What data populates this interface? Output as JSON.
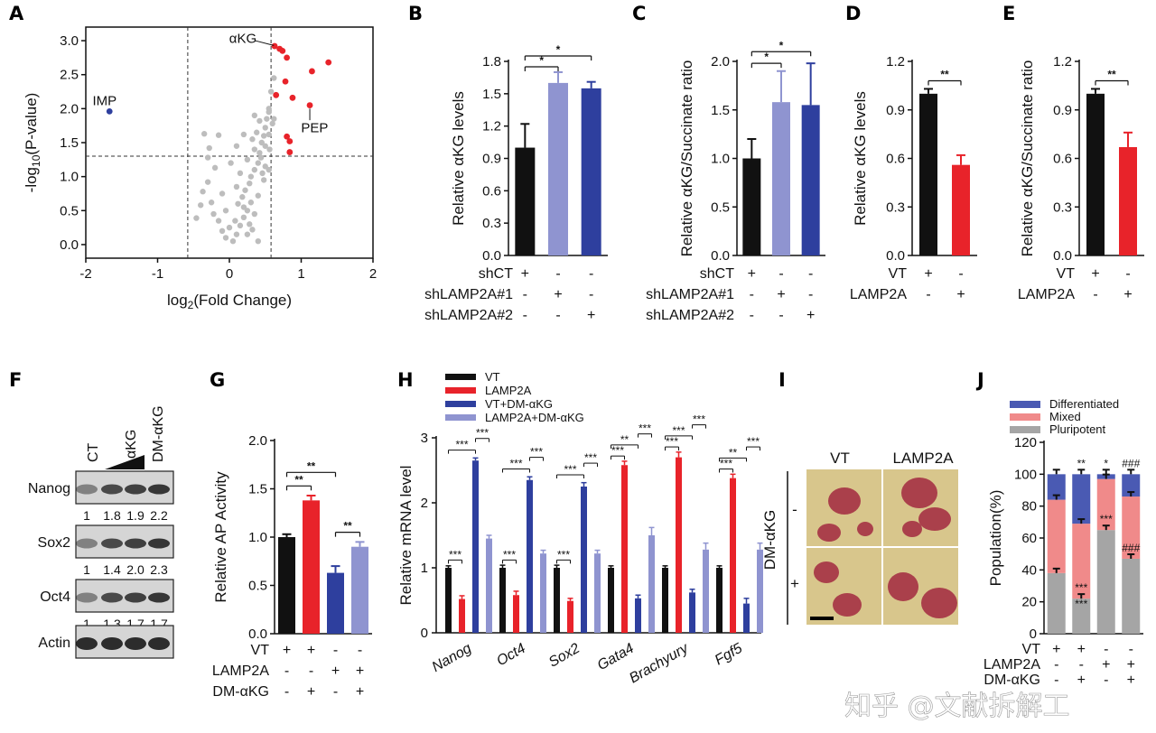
{
  "panel_labels": [
    "A",
    "B",
    "C",
    "D",
    "E",
    "F",
    "G",
    "H",
    "I",
    "J"
  ],
  "watermark": "知乎 @文献拆解工",
  "colors": {
    "black": "#111111",
    "red": "#e8232a",
    "blue": "#2e3f9e",
    "lightblue": "#8f94d0",
    "grey": "#bdbdbd",
    "pink": "#f08a8a",
    "midblue": "#4a5ab3"
  },
  "chart_data": [
    {
      "id": "A",
      "type": "scatter",
      "xlabel": "log2(Fold Change)",
      "ylabel": "-log10(P-value)",
      "xlim": [
        -2,
        2
      ],
      "ylim": [
        -0.2,
        3.2
      ],
      "xticks": [
        "-2",
        "-1",
        "0",
        "1",
        "2"
      ],
      "yticks": [
        "0.0",
        "0.5",
        "1.0",
        "1.5",
        "2.0",
        "2.5",
        "3.0"
      ],
      "thresholds": {
        "x": [
          -0.58,
          0.58
        ],
        "y": 1.3
      },
      "annotations": [
        {
          "text": "αKG",
          "x": 0.45,
          "y": 3.05
        },
        {
          "text": "PEP",
          "x": 1.15,
          "y": 1.68
        },
        {
          "text": "IMP",
          "x": -1.78,
          "y": 2.12
        }
      ],
      "blue_points": [
        [
          -1.67,
          1.96
        ]
      ],
      "red_points": [
        [
          0.63,
          2.92
        ],
        [
          0.7,
          2.88
        ],
        [
          0.74,
          2.85
        ],
        [
          0.8,
          2.75
        ],
        [
          0.78,
          2.4
        ],
        [
          1.15,
          2.55
        ],
        [
          1.38,
          2.68
        ],
        [
          0.65,
          2.2
        ],
        [
          1.12,
          2.05
        ],
        [
          0.88,
          2.16
        ],
        [
          0.84,
          1.52
        ],
        [
          0.8,
          1.59
        ],
        [
          0.84,
          1.36
        ]
      ],
      "grey_points": [
        [
          -0.35,
          1.63
        ],
        [
          -0.28,
          1.42
        ],
        [
          -0.15,
          1.61
        ],
        [
          -0.3,
          1.28
        ],
        [
          -0.2,
          1.13
        ],
        [
          -0.3,
          0.92
        ],
        [
          -0.37,
          0.78
        ],
        [
          -0.46,
          0.39
        ],
        [
          -0.4,
          0.58
        ],
        [
          -0.22,
          0.45
        ],
        [
          -0.15,
          0.35
        ],
        [
          -0.1,
          0.2
        ],
        [
          -0.05,
          0.1
        ],
        [
          0.05,
          0.05
        ],
        [
          0.1,
          0.15
        ],
        [
          0.15,
          0.28
        ],
        [
          0.2,
          0.4
        ],
        [
          0.25,
          0.5
        ],
        [
          0.12,
          0.6
        ],
        [
          0.18,
          0.7
        ],
        [
          0.22,
          0.8
        ],
        [
          0.28,
          0.9
        ],
        [
          0.3,
          1.0
        ],
        [
          0.35,
          1.1
        ],
        [
          0.4,
          1.2
        ],
        [
          0.42,
          1.35
        ],
        [
          0.45,
          1.5
        ],
        [
          0.48,
          1.6
        ],
        [
          0.5,
          1.72
        ],
        [
          0.52,
          1.85
        ],
        [
          0.55,
          1.95
        ],
        [
          0.5,
          1.45
        ],
        [
          0.44,
          1.28
        ],
        [
          0.38,
          1.65
        ],
        [
          0.32,
          1.55
        ],
        [
          0.55,
          1.62
        ],
        [
          0.6,
          1.78
        ],
        [
          0.62,
          1.85
        ],
        [
          0.58,
          2.25
        ],
        [
          0.62,
          2.45
        ],
        [
          0.55,
          2.0
        ],
        [
          0.46,
          1.05
        ],
        [
          0.4,
          0.72
        ],
        [
          0.3,
          0.62
        ],
        [
          0.2,
          0.55
        ],
        [
          0.08,
          0.35
        ],
        [
          0.0,
          0.25
        ],
        [
          -0.05,
          0.5
        ],
        [
          0.1,
          0.85
        ],
        [
          0.15,
          1.05
        ],
        [
          0.25,
          1.25
        ],
        [
          0.35,
          1.4
        ],
        [
          0.28,
          0.3
        ],
        [
          0.35,
          0.45
        ],
        [
          0.5,
          1.15
        ],
        [
          0.48,
          0.95
        ],
        [
          0.25,
          0.15
        ],
        [
          0.32,
          0.22
        ],
        [
          -0.1,
          0.75
        ],
        [
          -0.25,
          0.62
        ],
        [
          0.02,
          1.2
        ],
        [
          0.1,
          1.45
        ],
        [
          0.4,
          0.05
        ],
        [
          0.2,
          1.62
        ],
        [
          0.42,
          1.82
        ],
        [
          0.35,
          1.9
        ],
        [
          0.55,
          1.1
        ],
        [
          0.56,
          1.4
        ]
      ]
    },
    {
      "id": "B",
      "type": "bar",
      "ylabel": "Relative αKG levels",
      "ylim": [
        0,
        1.8
      ],
      "yticks": [
        "0.0",
        "0.3",
        "0.6",
        "0.9",
        "1.2",
        "1.5",
        "1.8"
      ],
      "values": [
        1.0,
        1.6,
        1.55
      ],
      "errors": [
        0.22,
        0.1,
        0.06
      ],
      "colors": [
        "#111111",
        "#8f94d0",
        "#2e3f9e"
      ],
      "rows": [
        {
          "label": "shCT",
          "signs": [
            "+",
            "-",
            "-"
          ]
        },
        {
          "label": "shLAMP2A#1",
          "signs": [
            "-",
            "+",
            "-"
          ]
        },
        {
          "label": "shLAMP2A#2",
          "signs": [
            "-",
            "-",
            "+"
          ]
        }
      ],
      "brackets": [
        {
          "from": 0,
          "to": 1,
          "level": 1.75,
          "text": "*"
        },
        {
          "from": 0,
          "to": 2,
          "level": 1.85,
          "text": "*"
        }
      ]
    },
    {
      "id": "C",
      "type": "bar",
      "ylabel": "Relative αKG/Succinate ratio",
      "ylim": [
        0,
        2.0
      ],
      "yticks": [
        "0.0",
        "0.5",
        "1.0",
        "1.5",
        "2.0"
      ],
      "values": [
        1.0,
        1.58,
        1.55
      ],
      "errors": [
        0.2,
        0.32,
        0.43
      ],
      "colors": [
        "#111111",
        "#8f94d0",
        "#2e3f9e"
      ],
      "rows": [
        {
          "label": "shCT",
          "signs": [
            "+",
            "-",
            "-"
          ]
        },
        {
          "label": "shLAMP2A#1",
          "signs": [
            "-",
            "+",
            "-"
          ]
        },
        {
          "label": "shLAMP2A#2",
          "signs": [
            "-",
            "-",
            "+"
          ]
        }
      ],
      "brackets": [
        {
          "from": 0,
          "to": 1,
          "level": 1.98,
          "text": "*"
        },
        {
          "from": 0,
          "to": 2,
          "level": 2.1,
          "text": "*"
        }
      ]
    },
    {
      "id": "D",
      "type": "bar",
      "ylabel": "Relative αKG levels",
      "ylim": [
        0,
        1.2
      ],
      "yticks": [
        "0.0",
        "0.3",
        "0.6",
        "0.9",
        "1.2"
      ],
      "values": [
        1.0,
        0.56
      ],
      "errors": [
        0.03,
        0.06
      ],
      "colors": [
        "#111111",
        "#e8232a"
      ],
      "rows": [
        {
          "label": "VT",
          "signs": [
            "+",
            "-"
          ]
        },
        {
          "label": "LAMP2A",
          "signs": [
            "-",
            "+"
          ]
        }
      ],
      "brackets": [
        {
          "from": 0,
          "to": 1,
          "level": 1.08,
          "text": "**"
        }
      ]
    },
    {
      "id": "E",
      "type": "bar",
      "ylabel": "Relative αKG/Succinate ratio",
      "ylim": [
        0,
        1.2
      ],
      "yticks": [
        "0.0",
        "0.3",
        "0.6",
        "0.9",
        "1.2"
      ],
      "values": [
        1.0,
        0.67
      ],
      "errors": [
        0.03,
        0.09
      ],
      "colors": [
        "#111111",
        "#e8232a"
      ],
      "rows": [
        {
          "label": "VT",
          "signs": [
            "+",
            "-"
          ]
        },
        {
          "label": "LAMP2A",
          "signs": [
            "-",
            "+"
          ]
        }
      ],
      "brackets": [
        {
          "from": 0,
          "to": 1,
          "level": 1.08,
          "text": "**"
        }
      ]
    },
    {
      "id": "G",
      "type": "bar",
      "ylabel": "Relative AP Activity",
      "ylim": [
        0,
        2.0
      ],
      "yticks": [
        "0.0",
        "0.5",
        "1.0",
        "1.5",
        "2.0"
      ],
      "values": [
        1.0,
        1.38,
        0.63,
        0.9
      ],
      "errors": [
        0.03,
        0.05,
        0.07,
        0.05
      ],
      "colors": [
        "#111111",
        "#e8232a",
        "#2e3f9e",
        "#8f94d0"
      ],
      "rows": [
        {
          "label": "VT",
          "signs": [
            "+",
            "+",
            "-",
            "-"
          ]
        },
        {
          "label": "LAMP2A",
          "signs": [
            "-",
            "-",
            "+",
            "+"
          ]
        },
        {
          "label": "DM-αKG",
          "signs": [
            "-",
            "+",
            "-",
            "+"
          ]
        }
      ],
      "brackets": [
        {
          "from": 0,
          "to": 1,
          "level": 1.53,
          "text": "**"
        },
        {
          "from": 0,
          "to": 2,
          "level": 1.67,
          "text": "**"
        },
        {
          "from": 2,
          "to": 3,
          "level": 1.05,
          "text": "**"
        }
      ]
    },
    {
      "id": "H",
      "type": "bar",
      "ylabel": "Relative mRNA level",
      "ylim": [
        0,
        3
      ],
      "yticks": [
        "0",
        "1",
        "2",
        "3"
      ],
      "legend": [
        "VT",
        "LAMP2A",
        "VT+DM-αKG",
        "LAMP2A+DM-αKG"
      ],
      "series_colors": [
        "#111111",
        "#e8232a",
        "#2e3f9e",
        "#8f94d0"
      ],
      "categories": [
        "Nanog",
        "Oct4",
        "Sox2",
        "Gata4",
        "Brachyury",
        "Fgf5"
      ],
      "series": [
        {
          "name": "VT",
          "values": [
            1.0,
            1.0,
            1.0,
            1.0,
            1.0,
            1.0
          ],
          "errors": [
            0.03,
            0.04,
            0.04,
            0.03,
            0.03,
            0.03
          ]
        },
        {
          "name": "LAMP2A",
          "values": [
            0.52,
            0.58,
            0.49,
            2.58,
            2.7,
            2.38
          ],
          "errors": [
            0.05,
            0.06,
            0.04,
            0.06,
            0.08,
            0.06
          ]
        },
        {
          "name": "VT+DM-αKG",
          "values": [
            2.65,
            2.35,
            2.25,
            0.53,
            0.62,
            0.45
          ],
          "errors": [
            0.04,
            0.05,
            0.06,
            0.05,
            0.05,
            0.08
          ]
        },
        {
          "name": "LAMP2A+DM-αKG",
          "values": [
            1.45,
            1.22,
            1.22,
            1.5,
            1.28,
            1.28
          ],
          "errors": [
            0.05,
            0.05,
            0.05,
            0.12,
            0.1,
            0.1
          ]
        }
      ],
      "star_groups": [
        [
          "***",
          "***",
          "***"
        ],
        [
          "***",
          "***",
          "***"
        ],
        [
          "***",
          "***",
          "***"
        ],
        [
          "***",
          "**",
          "***"
        ],
        [
          "***",
          "***",
          "***"
        ],
        [
          "***",
          "**",
          "***"
        ]
      ]
    },
    {
      "id": "J",
      "type": "stacked-bar",
      "ylabel": "Population(%)",
      "ylim": [
        0,
        120
      ],
      "yticks": [
        "0",
        "20",
        "40",
        "60",
        "80",
        "100",
        "120"
      ],
      "legend": [
        "Differentiated",
        "Mixed",
        "Pluripotent"
      ],
      "legend_colors": [
        "#4a5ab3",
        "#f08a8a",
        "#a5a5a5"
      ],
      "stacks": [
        {
          "pluripotent": 38,
          "mixed": 46,
          "differentiated": 16
        },
        {
          "pluripotent": 22,
          "mixed": 47,
          "differentiated": 31
        },
        {
          "pluripotent": 65,
          "mixed": 32,
          "differentiated": 3
        },
        {
          "pluripotent": 47,
          "mixed": 39,
          "differentiated": 14
        }
      ],
      "stars_top": [
        "",
        "**",
        "*",
        "###"
      ],
      "stars_mid": [
        "",
        "***",
        "***",
        "###"
      ],
      "stars_bottom": [
        "",
        "***",
        "",
        ""
      ],
      "rows": [
        {
          "label": "VT",
          "signs": [
            "+",
            "+",
            "-",
            "-"
          ]
        },
        {
          "label": "LAMP2A",
          "signs": [
            "-",
            "-",
            "+",
            "+"
          ]
        },
        {
          "label": "DM-αKG",
          "signs": [
            "-",
            "+",
            "-",
            "+"
          ]
        }
      ]
    }
  ],
  "blot": {
    "lanes": [
      "CT",
      "αKG",
      "DM-αKG"
    ],
    "bands": [
      {
        "name": "Nanog",
        "quant": [
          "1",
          "1.8",
          "1.9",
          "2.2"
        ]
      },
      {
        "name": "Sox2",
        "quant": [
          "1",
          "1.4",
          "2.0",
          "2.3"
        ]
      },
      {
        "name": "Oct4",
        "quant": [
          "1",
          "1.3",
          "1.7",
          "1.7"
        ]
      },
      {
        "name": "Actin",
        "quant": []
      }
    ]
  },
  "micro": {
    "cols": [
      "VT",
      "LAMP2A"
    ],
    "rowlabel": "DM-αKG",
    "rows": [
      "-",
      "+"
    ]
  }
}
